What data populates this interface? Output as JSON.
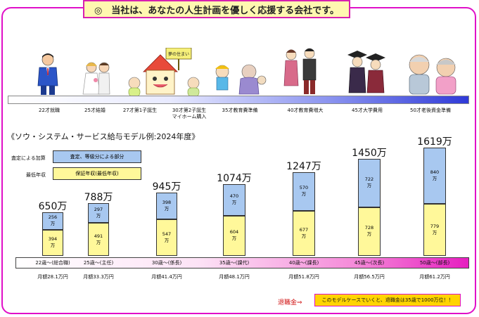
{
  "banner": {
    "text": "◎　当社は、あなたの人生計画を優しく応援する会社です。"
  },
  "sign_text": "夢の住まい",
  "stages": [
    {
      "label": "22才就職"
    },
    {
      "label": "25才結婚"
    },
    {
      "label": "27才第1子誕生"
    },
    {
      "label": "30才第2子誕生\nマイホーム購入"
    },
    {
      "label": "35才教育費準備"
    },
    {
      "label": "40才教育費増大"
    },
    {
      "label": "45才大学費用"
    },
    {
      "label": "50才老後資金準備"
    }
  ],
  "model_title": "《ソウ・システム・サービス給与モデル例:2024年度》",
  "legend": {
    "assessment_label": "査定による加算",
    "assessment_box": "査定、等級分による部分",
    "minimum_label": "最低年収",
    "minimum_box": "保証年収(最低年収)"
  },
  "colors": {
    "top_segment": "#a8c8f0",
    "bottom_segment": "#fff89a",
    "frame": "#e010c8",
    "retire_box": "#ffd400"
  },
  "chart_data": {
    "type": "bar",
    "categories": [
      "22歳～(総合職)",
      "25歳～(主任)",
      "30歳～(係長)",
      "35歳～(課代)",
      "40歳～(課長)",
      "45歳～(次長)",
      "50歳～(部長)"
    ],
    "series": [
      {
        "name": "保証年収(最低年収)",
        "values": [
          394,
          491,
          547,
          604,
          677,
          728,
          779
        ]
      },
      {
        "name": "査定、等級分による部分",
        "values": [
          256,
          297,
          398,
          470,
          570,
          722,
          840
        ]
      }
    ],
    "totals": [
      "650万",
      "788万",
      "945万",
      "1074万",
      "1247万",
      "1450万",
      "1619万"
    ],
    "unit": "万",
    "monthly": [
      "月額28.1万円",
      "月額33.3万円",
      "月額41.4万円",
      "月額48.1万円",
      "月額51.8万円",
      "月額56.5万円",
      "月額61.2万円"
    ]
  },
  "retirement": {
    "label": "退職金⇒",
    "note": "このモデルケースでいくと、退職金は35歳で1000万位！！"
  }
}
